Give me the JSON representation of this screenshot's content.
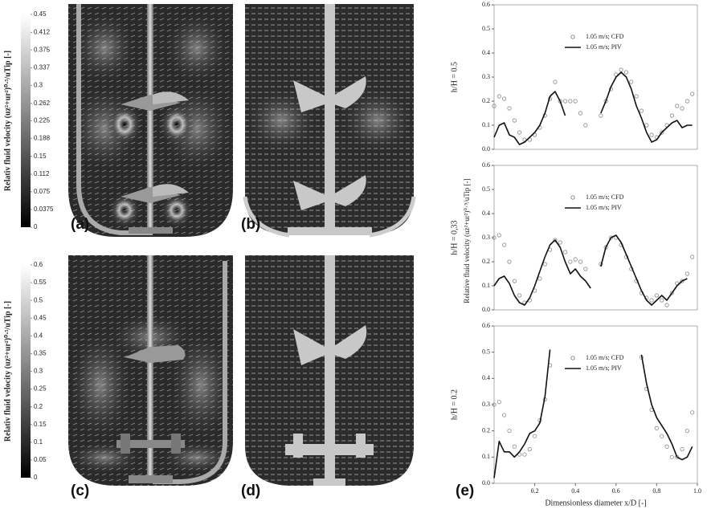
{
  "panel_labels": [
    "(a)",
    "(b)",
    "(c)",
    "(d)",
    "(e)"
  ],
  "shared_ylabel": "Relative fluid velocity (uz²+ur²)⁰·⁵/uTip [-]",
  "chart_data": [
    {
      "type": "colorbar",
      "label": "Relativ fluid velocity (uz²+ur²)⁰·⁵/uTip [-]",
      "ylim": [
        0,
        0.45
      ],
      "yticks": [
        0,
        0.0375,
        0.075,
        0.112,
        0.15,
        0.188,
        0.225,
        0.262,
        0.3,
        0.337,
        0.375,
        0.412,
        0.45
      ]
    },
    {
      "type": "colorbar",
      "label": "Relativ fluid velocity (uz²+ur²)⁰·⁵/uTip [-]",
      "ylim": [
        0,
        0.6
      ],
      "yticks": [
        0,
        0.05,
        0.1,
        0.15,
        0.2,
        0.25,
        0.3,
        0.35,
        0.4,
        0.45,
        0.5,
        0.55,
        0.6
      ]
    },
    {
      "type": "line",
      "ylabel": "h/H = 0.5",
      "xlim": [
        0,
        1
      ],
      "ylim": [
        0,
        0.6
      ],
      "yticks": [
        {
          "value": 0,
          "label": "0.0"
        },
        0.1,
        0.2,
        0.3,
        0.4,
        0.5,
        0.6
      ],
      "x": [
        0,
        0.025,
        0.05,
        0.075,
        0.1,
        0.125,
        0.15,
        0.175,
        0.2,
        0.225,
        0.25,
        0.275,
        0.3,
        0.325,
        0.35,
        0.375,
        0.4,
        0.425,
        0.45,
        0.475,
        0.5,
        0.525,
        0.55,
        0.575,
        0.6,
        0.625,
        0.65,
        0.675,
        0.7,
        0.725,
        0.75,
        0.775,
        0.8,
        0.825,
        0.85,
        0.875,
        0.9,
        0.925,
        0.95,
        0.975,
        1
      ],
      "series": [
        {
          "name": "1.05 m/s; CFD",
          "style": "markers",
          "color": "#8a8a8a",
          "values": [
            0.18,
            0.22,
            0.21,
            0.17,
            0.12,
            0.07,
            0.04,
            0.04,
            0.06,
            0.09,
            0.14,
            0.21,
            0.28,
            0.2,
            0.2,
            0.2,
            0.2,
            0.15,
            0.1,
            null,
            null,
            0.14,
            0.2,
            0.25,
            0.31,
            0.33,
            0.32,
            0.28,
            0.22,
            0.16,
            0.1,
            0.06,
            0.05,
            0.07,
            0.1,
            0.14,
            0.18,
            0.17,
            0.2,
            0.23,
            null
          ]
        },
        {
          "name": "1.05 m/s; PIV",
          "style": "line",
          "color": "#111111",
          "values": [
            0.05,
            0.1,
            0.11,
            0.06,
            0.05,
            0.02,
            0.03,
            0.05,
            0.07,
            0.1,
            0.15,
            0.22,
            0.24,
            0.2,
            0.14,
            null,
            null,
            null,
            null,
            null,
            null,
            0.15,
            0.2,
            0.26,
            0.3,
            0.32,
            0.3,
            0.25,
            0.18,
            0.13,
            0.07,
            0.03,
            0.04,
            0.07,
            0.09,
            0.11,
            0.12,
            0.09,
            0.1,
            0.1,
            null
          ]
        }
      ]
    },
    {
      "type": "line",
      "ylabel": "h/H = 0,33",
      "xlim": [
        0,
        1
      ],
      "ylim": [
        0,
        0.6
      ],
      "yticks": [
        {
          "value": 0,
          "label": "0.0"
        },
        0.1,
        0.2,
        0.3,
        0.4,
        0.5,
        0.6
      ],
      "x": [
        0,
        0.025,
        0.05,
        0.075,
        0.1,
        0.125,
        0.15,
        0.175,
        0.2,
        0.225,
        0.25,
        0.275,
        0.3,
        0.325,
        0.35,
        0.375,
        0.4,
        0.425,
        0.45,
        0.475,
        0.5,
        0.525,
        0.55,
        0.575,
        0.6,
        0.625,
        0.65,
        0.675,
        0.7,
        0.725,
        0.75,
        0.775,
        0.8,
        0.825,
        0.85,
        0.875,
        0.9,
        0.925,
        0.95,
        0.975,
        1
      ],
      "series": [
        {
          "name": "1.05 m/s; CFD",
          "style": "markers",
          "color": "#8a8a8a",
          "values": [
            0.3,
            0.31,
            0.27,
            0.2,
            0.12,
            0.06,
            0.03,
            0.04,
            0.08,
            0.13,
            0.19,
            0.25,
            0.29,
            0.28,
            0.24,
            0.2,
            0.21,
            0.2,
            0.17,
            null,
            null,
            0.19,
            0.26,
            0.3,
            0.3,
            0.27,
            0.22,
            0.17,
            0.12,
            0.07,
            0.05,
            0.04,
            0.06,
            0.04,
            0.02,
            0.07,
            0.11,
            0.12,
            0.15,
            0.22,
            null
          ]
        },
        {
          "name": "1.05 m/s; PIV",
          "style": "line",
          "color": "#111111",
          "values": [
            0.1,
            0.13,
            0.14,
            0.11,
            0.06,
            0.03,
            0.02,
            0.05,
            0.1,
            0.16,
            0.22,
            0.27,
            0.29,
            0.26,
            0.2,
            0.15,
            0.17,
            0.14,
            0.12,
            0.09,
            null,
            0.18,
            0.26,
            0.3,
            0.31,
            0.28,
            0.23,
            0.18,
            0.13,
            0.08,
            0.04,
            0.02,
            0.04,
            0.06,
            0.04,
            0.07,
            0.1,
            0.12,
            0.13,
            null,
            null
          ]
        }
      ]
    },
    {
      "type": "line",
      "ylabel": "h/H = 0.2",
      "xlabel": "Dimensionless diameter x/D [-]",
      "xlim": [
        0,
        1
      ],
      "ylim": [
        0,
        0.6
      ],
      "yticks": [
        {
          "value": 0,
          "label": "0.0"
        },
        0.1,
        0.2,
        0.3,
        0.4,
        0.5,
        0.6
      ],
      "xticks": [
        0.2,
        0.4,
        0.6,
        0.8,
        {
          "value": 1,
          "label": "1.0"
        }
      ],
      "x": [
        0,
        0.025,
        0.05,
        0.075,
        0.1,
        0.125,
        0.15,
        0.175,
        0.2,
        0.225,
        0.25,
        0.275,
        0.3,
        0.325,
        0.35,
        0.375,
        0.4,
        0.425,
        0.45,
        0.475,
        0.5,
        0.525,
        0.55,
        0.575,
        0.6,
        0.625,
        0.65,
        0.675,
        0.7,
        0.725,
        0.75,
        0.775,
        0.8,
        0.825,
        0.85,
        0.875,
        0.9,
        0.925,
        0.95,
        0.975,
        1
      ],
      "series": [
        {
          "name": "1.05 m/s; CFD",
          "style": "markers",
          "color": "#8a8a8a",
          "values": [
            0.3,
            0.31,
            0.26,
            0.2,
            0.14,
            0.11,
            0.11,
            0.13,
            0.18,
            0.24,
            0.32,
            0.45,
            null,
            null,
            null,
            null,
            null,
            null,
            null,
            null,
            null,
            null,
            null,
            null,
            null,
            null,
            null,
            null,
            null,
            0.48,
            0.36,
            0.28,
            0.21,
            0.18,
            0.14,
            0.1,
            0.1,
            0.13,
            0.2,
            0.27,
            null
          ]
        },
        {
          "name": "1.05 m/s; PIV",
          "style": "line",
          "color": "#111111",
          "values": [
            0.02,
            0.16,
            0.12,
            0.12,
            0.1,
            0.12,
            0.15,
            0.19,
            0.2,
            0.23,
            0.33,
            0.51,
            null,
            null,
            null,
            null,
            null,
            null,
            null,
            null,
            null,
            null,
            null,
            null,
            null,
            null,
            null,
            null,
            null,
            0.49,
            0.38,
            0.3,
            0.25,
            0.22,
            0.19,
            0.15,
            0.1,
            0.09,
            0.1,
            0.14,
            null
          ]
        }
      ]
    }
  ]
}
